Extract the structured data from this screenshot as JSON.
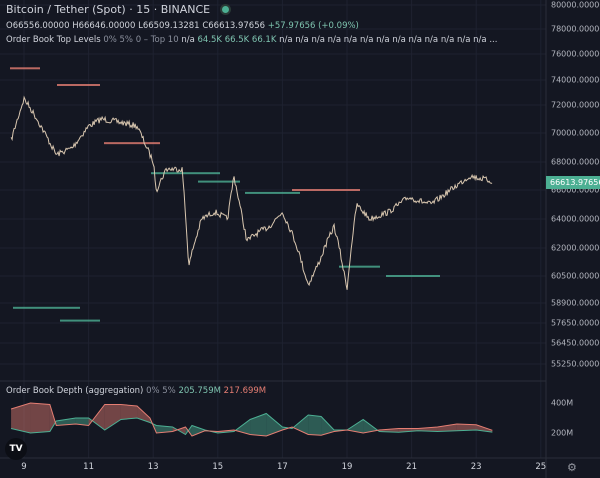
{
  "header": {
    "symbol": "Bitcoin / Tether (Spot)",
    "interval": "15",
    "exchange": "BINANCE"
  },
  "ohlc": {
    "o": "O66556.00000",
    "h": "H66646.00000",
    "l": "L66509.13281",
    "c": "C66613.97656",
    "change": "+57.97656 (+0.09%)"
  },
  "order_book": {
    "name": "Order Book Top Levels",
    "params": "0% 5% 0 – Top 10",
    "values": [
      "n/a",
      "64.5K",
      "66.5K",
      "66.1K",
      "n/a",
      "n/a",
      "n/a",
      "n/a",
      "n/a",
      "n/a",
      "n/a",
      "n/a",
      "n/a",
      "n/a",
      "n/a",
      "n/a",
      "n/a"
    ],
    "ellipsis": "..."
  },
  "price_axis": [
    "80000.00000",
    "78000.00000",
    "76000.00000",
    "74000.00000",
    "72000.00000",
    "70000.00000",
    "68000.00000",
    "66000.00000",
    "64000.00000",
    "62000.00000",
    "60500.00000",
    "58900.00000",
    "57650.00000",
    "56450.00000",
    "55250.00000"
  ],
  "last_price": "66613.97656",
  "depth": {
    "name": "Order Book Depth (aggregation)",
    "params": "0% 5%",
    "bids": "205.759M",
    "asks": "217.699M",
    "axis": [
      "400M",
      "200M"
    ]
  },
  "dates": [
    "9",
    "11",
    "13",
    "15",
    "17",
    "19",
    "21",
    "23",
    "25"
  ],
  "colors": {
    "bg": "#141722",
    "up": "#4caf93",
    "down": "#e57e73"
  },
  "chart_data": {
    "type": "line",
    "price_x_days": [
      8.6,
      9,
      9.4,
      10,
      10.5,
      11,
      11.4,
      11.9,
      12.5,
      13,
      13.1,
      13.4,
      13.9,
      14.1,
      14.5,
      14.9,
      15.3,
      15.5,
      15.9,
      16.2,
      16.6,
      17,
      17.3,
      17.8,
      18.2,
      18.6,
      19,
      19.3,
      19.5,
      19.7,
      20.3,
      20.9,
      21.6,
      22.2,
      22.8,
      23.2,
      23.5
    ],
    "price_values": [
      69500,
      72500,
      71000,
      68500,
      69000,
      70500,
      71000,
      70800,
      70500,
      68000,
      66000,
      67500,
      67500,
      61000,
      64000,
      64500,
      64000,
      67000,
      62500,
      63000,
      63500,
      64500,
      63000,
      60000,
      61500,
      63500,
      59800,
      65000,
      64500,
      64000,
      64500,
      65500,
      65000,
      66000,
      67000,
      66800,
      66614
    ],
    "depth_x_days": [
      8.6,
      9.2,
      9.8,
      10,
      10.6,
      11,
      11.5,
      12,
      12.5,
      12.9,
      13.1,
      13.6,
      14,
      14.2,
      14.6,
      15,
      15.5,
      16,
      16.5,
      17,
      17.3,
      17.8,
      18.2,
      18.6,
      19,
      19.5,
      20,
      20.6,
      21.2,
      21.8,
      22.4,
      23,
      23.5
    ],
    "depth_bids": [
      230,
      200,
      210,
      280,
      300,
      300,
      220,
      290,
      300,
      270,
      250,
      240,
      190,
      250,
      220,
      200,
      210,
      290,
      330,
      240,
      230,
      320,
      310,
      220,
      220,
      290,
      210,
      205,
      215,
      210,
      215,
      220,
      206
    ],
    "depth_asks": [
      360,
      400,
      390,
      250,
      260,
      250,
      390,
      390,
      380,
      300,
      200,
      210,
      240,
      180,
      215,
      210,
      220,
      190,
      180,
      220,
      240,
      190,
      185,
      210,
      220,
      200,
      220,
      230,
      230,
      240,
      260,
      255,
      218
    ],
    "levels": [
      {
        "price": 74900,
        "side": "ask"
      },
      {
        "price": 73600,
        "side": "ask"
      },
      {
        "price": 69300,
        "side": "ask"
      },
      {
        "price": 67200,
        "side": "bid"
      },
      {
        "price": 66600,
        "side": "bid"
      },
      {
        "price": 65800,
        "side": "bid"
      },
      {
        "price": 66000,
        "side": "ask"
      },
      {
        "price": 61000,
        "side": "bid"
      },
      {
        "price": 60500,
        "side": "bid"
      },
      {
        "price": 58600,
        "side": "bid"
      },
      {
        "price": 57800,
        "side": "bid"
      }
    ]
  }
}
